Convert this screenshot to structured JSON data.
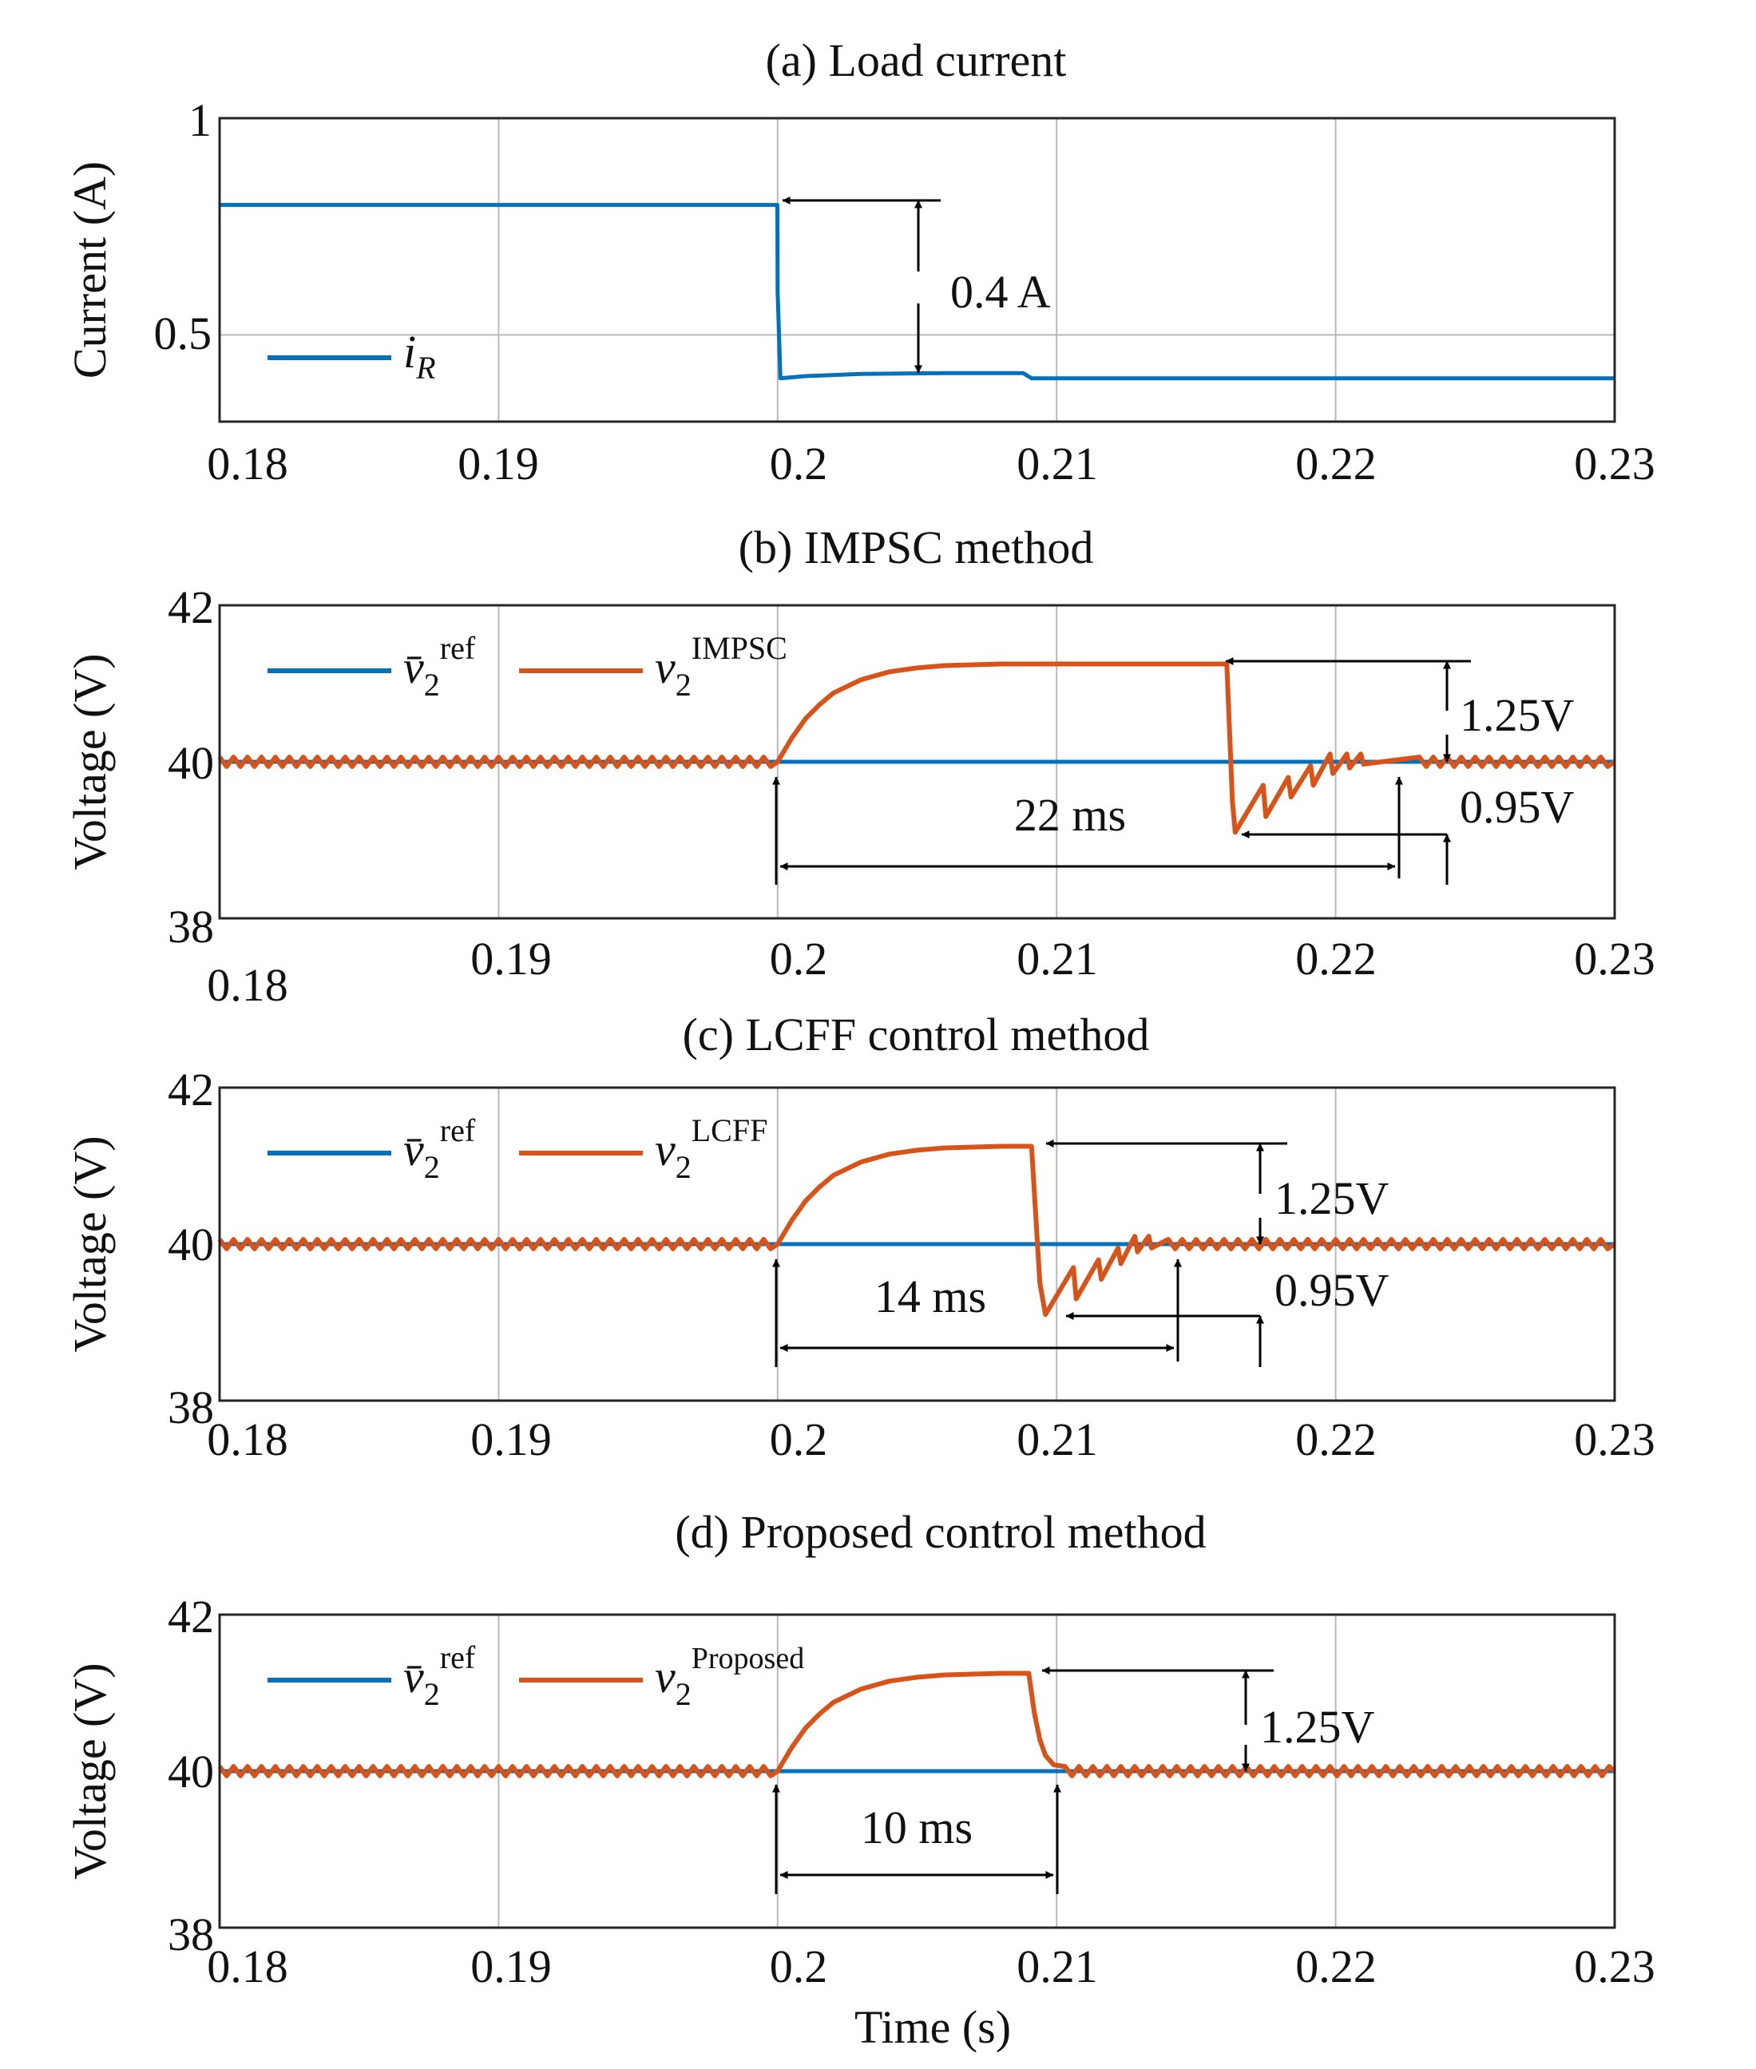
{
  "colors": {
    "blue": "#0072BD",
    "orange": "#D95319",
    "grid": "#b9b9b9",
    "axis": "#262626",
    "annot": "#000000"
  },
  "chart_data": [
    {
      "type": "line",
      "title": "(a) Load current",
      "ylabel": "Current (A)",
      "xlabel": "",
      "xlim": [
        0.18,
        0.23
      ],
      "ylim": [
        0.3,
        1
      ],
      "xticks": [
        0.18,
        0.19,
        0.2,
        0.21,
        0.22,
        0.23
      ],
      "xtick_labels": [
        "0.18",
        "0.19",
        "0.2",
        "0.21",
        "0.22",
        "0.23"
      ],
      "yticks": [
        0.5,
        1
      ],
      "ytick_labels": [
        "0.5",
        "1"
      ],
      "grid": true,
      "legend": "left",
      "series": [
        {
          "name": "iR",
          "name_main": "i",
          "name_sub": "R",
          "color": "blue",
          "x": [
            0.18,
            0.19999,
            0.2,
            0.2001,
            0.201,
            0.203,
            0.206,
            0.2088,
            0.2091,
            0.215,
            0.23
          ],
          "y": [
            0.8,
            0.8,
            0.6,
            0.4,
            0.405,
            0.41,
            0.412,
            0.412,
            0.4,
            0.4,
            0.4
          ]
        }
      ],
      "annotations": [
        {
          "text": "0.4 A"
        }
      ]
    },
    {
      "type": "line",
      "title": "(b) IMPSC method",
      "ylabel": "Voltage (V)",
      "xlabel": "",
      "xlim": [
        0.18,
        0.23
      ],
      "ylim": [
        38,
        42
      ],
      "xticks": [
        0.18,
        0.19,
        0.2,
        0.21,
        0.22,
        0.23
      ],
      "xtick_labels": [
        "0.18",
        "0.19",
        "0.2",
        "0.21",
        "0.22",
        "0.23"
      ],
      "yticks": [
        38,
        40,
        42
      ],
      "ytick_labels": [
        "38",
        "40",
        "42"
      ],
      "grid": true,
      "legend": "top-left",
      "series": [
        {
          "name": "v̄2ref",
          "name_main": "v̄",
          "name_sub": "2",
          "name_sup": "ref",
          "color": "blue",
          "x": [
            0.18,
            0.23
          ],
          "y": [
            40,
            40
          ]
        },
        {
          "name": "v2IMPSC",
          "name_main": "v",
          "name_sub": "2",
          "name_sup": "IMPSC",
          "color": "orange",
          "x": [
            0.18,
            0.2,
            0.2005,
            0.201,
            0.2015,
            0.202,
            0.203,
            0.204,
            0.205,
            0.206,
            0.208,
            0.21,
            0.214,
            0.2161,
            0.2163,
            0.2164,
            0.2174,
            0.2175,
            0.2183,
            0.2184,
            0.2191,
            0.2192,
            0.2198,
            0.2199,
            0.2204,
            0.2205,
            0.2209,
            0.221,
            0.223,
            0.23
          ],
          "y": [
            40,
            40,
            40.3,
            40.55,
            40.73,
            40.88,
            41.05,
            41.15,
            41.2,
            41.23,
            41.25,
            41.25,
            41.25,
            41.25,
            39.5,
            39.1,
            39.7,
            39.3,
            39.8,
            39.55,
            39.95,
            39.7,
            40.1,
            39.85,
            40.1,
            39.92,
            40.1,
            39.97,
            40,
            40
          ]
        }
      ],
      "annotations": [
        {
          "text": "1.25V"
        },
        {
          "text": "0.95V"
        },
        {
          "text": "22 ms"
        }
      ]
    },
    {
      "type": "line",
      "title": "(c) LCFF control method",
      "ylabel": "Voltage (V)",
      "xlabel": "",
      "xlim": [
        0.18,
        0.23
      ],
      "ylim": [
        38,
        42
      ],
      "xticks": [
        0.18,
        0.19,
        0.2,
        0.21,
        0.22,
        0.23
      ],
      "xtick_labels": [
        "0.18",
        "0.19",
        "0.2",
        "0.21",
        "0.22",
        "0.23"
      ],
      "yticks": [
        38,
        40,
        42
      ],
      "ytick_labels": [
        "38",
        "40",
        "42"
      ],
      "grid": true,
      "legend": "top-left",
      "series": [
        {
          "name": "v̄2ref",
          "name_main": "v̄",
          "name_sub": "2",
          "name_sup": "ref",
          "color": "blue",
          "x": [
            0.18,
            0.23
          ],
          "y": [
            40,
            40
          ]
        },
        {
          "name": "v2LCFF",
          "name_main": "v",
          "name_sub": "2",
          "name_sup": "LCFF",
          "color": "orange",
          "x": [
            0.18,
            0.2,
            0.2005,
            0.201,
            0.2015,
            0.202,
            0.203,
            0.204,
            0.205,
            0.206,
            0.208,
            0.2091,
            0.2094,
            0.2096,
            0.2106,
            0.2107,
            0.2115,
            0.2116,
            0.2122,
            0.2123,
            0.2128,
            0.2129,
            0.2133,
            0.2134,
            0.214,
            0.23
          ],
          "y": [
            40,
            40,
            40.3,
            40.55,
            40.73,
            40.88,
            41.05,
            41.15,
            41.2,
            41.23,
            41.25,
            41.25,
            39.5,
            39.1,
            39.7,
            39.3,
            39.8,
            39.55,
            39.95,
            39.75,
            40.1,
            39.9,
            40.1,
            39.95,
            40,
            40
          ]
        }
      ],
      "annotations": [
        {
          "text": "1.25V"
        },
        {
          "text": "0.95V"
        },
        {
          "text": "14 ms"
        }
      ]
    },
    {
      "type": "line",
      "title": "(d) Proposed control method",
      "ylabel": "Voltage (V)",
      "xlabel": "Time (s)",
      "xlim": [
        0.18,
        0.23
      ],
      "ylim": [
        38,
        42
      ],
      "xticks": [
        0.18,
        0.19,
        0.2,
        0.21,
        0.22,
        0.23
      ],
      "xtick_labels": [
        "0.18",
        "0.19",
        "0.2",
        "0.21",
        "0.22",
        "0.23"
      ],
      "yticks": [
        38,
        40,
        42
      ],
      "ytick_labels": [
        "38",
        "40",
        "42"
      ],
      "grid": true,
      "legend": "top-left",
      "series": [
        {
          "name": "v̄2ref",
          "name_main": "v̄",
          "name_sub": "2",
          "name_sup": "ref",
          "color": "blue",
          "x": [
            0.18,
            0.23
          ],
          "y": [
            40,
            40
          ]
        },
        {
          "name": "v2Proposed",
          "name_main": "v",
          "name_sub": "2",
          "name_sup": "Proposed",
          "color": "orange",
          "x": [
            0.18,
            0.2,
            0.2005,
            0.201,
            0.2015,
            0.202,
            0.203,
            0.204,
            0.205,
            0.206,
            0.208,
            0.209,
            0.2092,
            0.2094,
            0.2096,
            0.2099,
            0.2103,
            0.23
          ],
          "y": [
            40,
            40,
            40.3,
            40.55,
            40.73,
            40.88,
            41.05,
            41.15,
            41.2,
            41.23,
            41.25,
            41.25,
            40.75,
            40.4,
            40.2,
            40.08,
            40,
            40
          ]
        }
      ],
      "annotations": [
        {
          "text": "1.25V"
        },
        {
          "text": "10 ms"
        }
      ]
    }
  ]
}
